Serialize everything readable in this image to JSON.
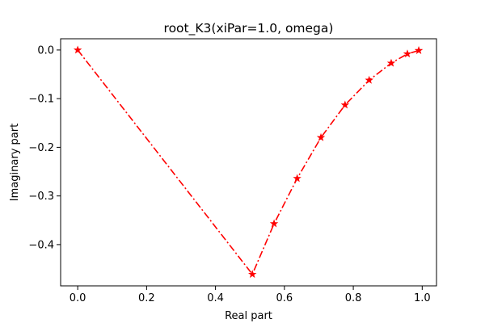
{
  "chart_data": {
    "type": "line",
    "title": "root_K3(xiPar=1.0, omega)",
    "xlabel": "Real part",
    "ylabel": "Imaginary part",
    "xlim": [
      -0.0496,
      1.0415
    ],
    "ylim": [
      -0.4848,
      0.0231
    ],
    "x_ticks": [
      0.0,
      0.2,
      0.4,
      0.6,
      0.8,
      1.0
    ],
    "x_tick_labels": [
      "0.0",
      "0.2",
      "0.4",
      "0.6",
      "0.8",
      "1.0"
    ],
    "y_ticks": [
      0.0,
      -0.1,
      -0.2,
      -0.3,
      -0.4
    ],
    "y_tick_labels": [
      "0.0",
      "−0.1",
      "−0.2",
      "−0.3",
      "−0.4"
    ],
    "grid": false,
    "series": [
      {
        "color": "#ff0000",
        "line_style": "dash-dot",
        "marker": "star",
        "x": [
          0.0,
          0.507,
          0.57,
          0.637,
          0.706,
          0.776,
          0.846,
          0.91,
          0.957,
          0.99
        ],
        "y": [
          0.0,
          -0.461,
          -0.357,
          -0.264,
          -0.18,
          -0.113,
          -0.062,
          -0.027,
          -0.008,
          -0.001
        ]
      }
    ]
  }
}
